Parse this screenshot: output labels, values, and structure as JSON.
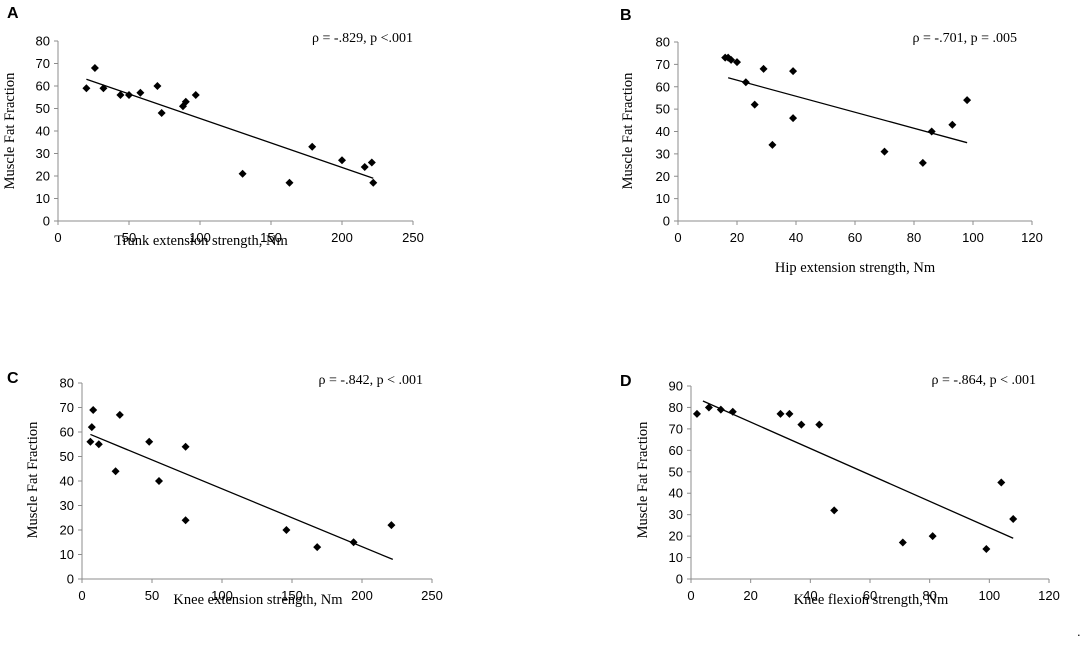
{
  "chart_data": [
    {
      "type": "scatter",
      "panel_label": "A",
      "title": "",
      "xlabel": "Trunk extension strength, Nm",
      "ylabel": "Muscle Fat Fraction",
      "annotation": "ρ = -.829, p <.001",
      "xlim": [
        0,
        250
      ],
      "ylim": [
        0,
        80
      ],
      "xticks": [
        0,
        50,
        100,
        150,
        200,
        250
      ],
      "yticks": [
        0,
        10,
        20,
        30,
        40,
        50,
        60,
        70,
        80
      ],
      "points": [
        [
          20,
          59
        ],
        [
          26,
          68
        ],
        [
          32,
          59
        ],
        [
          44,
          56
        ],
        [
          50,
          56
        ],
        [
          58,
          57
        ],
        [
          70,
          60
        ],
        [
          73,
          48
        ],
        [
          88,
          51
        ],
        [
          90,
          53
        ],
        [
          97,
          56
        ],
        [
          130,
          21
        ],
        [
          163,
          17
        ],
        [
          179,
          33
        ],
        [
          200,
          27
        ],
        [
          216,
          24
        ],
        [
          221,
          26
        ],
        [
          222,
          17
        ]
      ],
      "trendline": [
        [
          20,
          63
        ],
        [
          222,
          19
        ]
      ]
    },
    {
      "type": "scatter",
      "panel_label": "B",
      "title": "",
      "xlabel": "Hip extension strength, Nm",
      "ylabel": "Muscle Fat Fraction",
      "annotation": "ρ = -.701, p = .005",
      "xlim": [
        0,
        120
      ],
      "ylim": [
        0,
        80
      ],
      "xticks": [
        0,
        20,
        40,
        60,
        80,
        100,
        120
      ],
      "yticks": [
        0,
        10,
        20,
        30,
        40,
        50,
        60,
        70,
        80
      ],
      "points": [
        [
          16,
          73
        ],
        [
          17,
          73
        ],
        [
          18,
          72
        ],
        [
          20,
          71
        ],
        [
          23,
          62
        ],
        [
          26,
          52
        ],
        [
          29,
          68
        ],
        [
          32,
          34
        ],
        [
          39,
          67
        ],
        [
          39,
          46
        ],
        [
          70,
          31
        ],
        [
          83,
          26
        ],
        [
          86,
          40
        ],
        [
          93,
          43
        ],
        [
          98,
          54
        ]
      ],
      "trendline": [
        [
          17,
          64
        ],
        [
          98,
          35
        ]
      ]
    },
    {
      "type": "scatter",
      "panel_label": "C",
      "title": "",
      "xlabel": "Knee extension strength, Nm",
      "ylabel": "Muscle Fat Fraction",
      "annotation": "ρ = -.842, p < .001",
      "xlim": [
        0,
        250
      ],
      "ylim": [
        0,
        80
      ],
      "xticks": [
        0,
        50,
        100,
        150,
        200,
        250
      ],
      "yticks": [
        0,
        10,
        20,
        30,
        40,
        50,
        60,
        70,
        80
      ],
      "points": [
        [
          6,
          56
        ],
        [
          7,
          62
        ],
        [
          8,
          69
        ],
        [
          12,
          55
        ],
        [
          24,
          44
        ],
        [
          27,
          67
        ],
        [
          48,
          56
        ],
        [
          55,
          40
        ],
        [
          74,
          54
        ],
        [
          74,
          24
        ],
        [
          146,
          20
        ],
        [
          168,
          13
        ],
        [
          194,
          15
        ],
        [
          221,
          22
        ]
      ],
      "trendline": [
        [
          6,
          59
        ],
        [
          222,
          8
        ]
      ]
    },
    {
      "type": "scatter",
      "panel_label": "D",
      "title": "",
      "xlabel": "Knee flexion strength, Nm",
      "ylabel": "Muscle Fat Fraction",
      "annotation": "ρ  = -.864, p < .001",
      "xlim": [
        0,
        120
      ],
      "ylim": [
        0,
        90
      ],
      "xticks": [
        0,
        20,
        40,
        60,
        80,
        100,
        120
      ],
      "yticks": [
        0,
        10,
        20,
        30,
        40,
        50,
        60,
        70,
        80,
        90
      ],
      "points": [
        [
          2,
          77
        ],
        [
          6,
          80
        ],
        [
          10,
          79
        ],
        [
          14,
          78
        ],
        [
          30,
          77
        ],
        [
          33,
          77
        ],
        [
          37,
          72
        ],
        [
          43,
          72
        ],
        [
          48,
          32
        ],
        [
          71,
          17
        ],
        [
          81,
          20
        ],
        [
          99,
          14
        ],
        [
          104,
          45
        ],
        [
          108,
          28
        ]
      ],
      "trendline": [
        [
          4,
          83
        ],
        [
          108,
          19
        ]
      ]
    }
  ]
}
